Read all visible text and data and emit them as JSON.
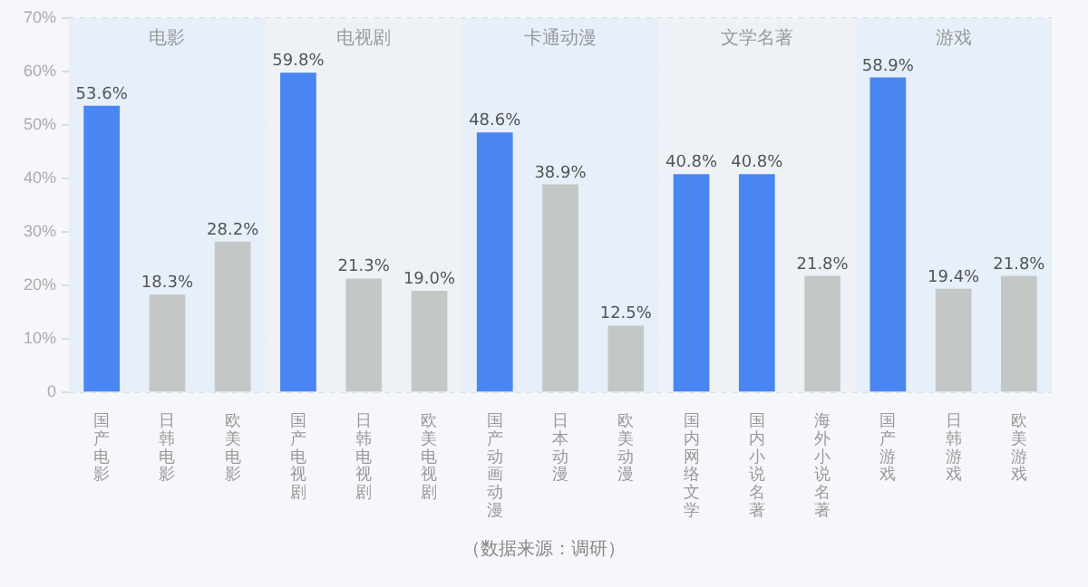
{
  "chart_data": {
    "type": "bar",
    "categories": [
      "国产电影",
      "日韩电影",
      "欧美电影",
      "国产电视剧",
      "日韩电视剧",
      "欧美电视剧",
      "国产动画动漫",
      "日本动漫",
      "欧美动漫",
      "国内网络文学",
      "国内小说名著",
      "海外小说名著",
      "国产游戏",
      "日韩游戏",
      "欧美游戏"
    ],
    "values": [
      53.6,
      18.3,
      28.2,
      59.8,
      21.3,
      19.0,
      48.6,
      38.9,
      12.5,
      40.8,
      40.8,
      21.8,
      58.9,
      19.4,
      21.8
    ],
    "colors": [
      "#4a86f2",
      "#c3c8c7",
      "#c3c8c7",
      "#4a86f2",
      "#c3c8c7",
      "#c3c8c7",
      "#4a86f2",
      "#c3c8c7",
      "#c3c8c7",
      "#4a86f2",
      "#4a86f2",
      "#c3c8c7",
      "#4a86f2",
      "#c3c8c7",
      "#c3c8c7"
    ],
    "value_labels": [
      "53.6%",
      "18.3%",
      "28.2%",
      "59.8%",
      "21.3%",
      "19.0%",
      "48.6%",
      "38.9%",
      "12.5%",
      "40.8%",
      "40.8%",
      "21.8%",
      "58.9%",
      "19.4%",
      "21.8%"
    ],
    "ylim": [
      0,
      70
    ],
    "yticks": [
      {
        "value": 0,
        "label": "0"
      },
      {
        "value": 10,
        "label": "10%"
      },
      {
        "value": 20,
        "label": "20%"
      },
      {
        "value": 30,
        "label": "30%"
      },
      {
        "value": 40,
        "label": "40%"
      },
      {
        "value": 50,
        "label": "50%"
      },
      {
        "value": 60,
        "label": "60%"
      },
      {
        "value": 70,
        "label": "70%"
      }
    ],
    "grid": "y",
    "bands": [
      {
        "axis": "x",
        "from": "国产电影",
        "to": "欧美电影",
        "label": "电影",
        "color": "#e6effa"
      },
      {
        "axis": "x",
        "from": "国产电视剧",
        "to": "欧美电视剧",
        "label": "电视剧",
        "color": "#eef2f7"
      },
      {
        "axis": "x",
        "from": "国产动画动漫",
        "to": "欧美动漫",
        "label": "卡通动漫",
        "color": "#e6effa"
      },
      {
        "axis": "x",
        "from": "国内网络文学",
        "to": "海外小说名著",
        "label": "文学名著",
        "color": "#eef2f7"
      },
      {
        "axis": "x",
        "from": "国产游戏",
        "to": "欧美游戏",
        "label": "游戏",
        "color": "#e6effa"
      }
    ],
    "annotations": [
      "（数据来源：调研）"
    ]
  }
}
